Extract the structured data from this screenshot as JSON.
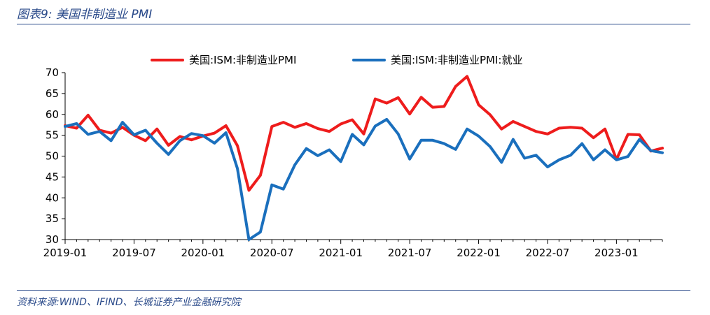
{
  "figure": {
    "title": "图表9:  美国非制造业 PMI",
    "source": "资料来源:WIND、IFIND、长城证券产业金融研究院"
  },
  "colors": {
    "series1": "#ee1c1c",
    "series2": "#1a6fbd",
    "frame": "#2a4a8a"
  },
  "chart_data": {
    "type": "line",
    "title": "",
    "xlabel": "",
    "ylabel": "",
    "ylim": [
      30,
      70
    ],
    "yticks": [
      "30",
      "35",
      "40",
      "45",
      "50",
      "55",
      "60",
      "65",
      "70"
    ],
    "xtick_labels": [
      "2019-01",
      "2019-07",
      "2020-01",
      "2020-07",
      "2021-01",
      "2021-07",
      "2022-01",
      "2022-07",
      "2023-01"
    ],
    "grid": false,
    "legend_position": "top",
    "x": [
      "2019-01",
      "2019-02",
      "2019-03",
      "2019-04",
      "2019-05",
      "2019-06",
      "2019-07",
      "2019-08",
      "2019-09",
      "2019-10",
      "2019-11",
      "2019-12",
      "2020-01",
      "2020-02",
      "2020-03",
      "2020-04",
      "2020-05",
      "2020-06",
      "2020-07",
      "2020-08",
      "2020-09",
      "2020-10",
      "2020-11",
      "2020-12",
      "2021-01",
      "2021-02",
      "2021-03",
      "2021-04",
      "2021-05",
      "2021-06",
      "2021-07",
      "2021-08",
      "2021-09",
      "2021-10",
      "2021-11",
      "2021-12",
      "2022-01",
      "2022-02",
      "2022-03",
      "2022-04",
      "2022-05",
      "2022-06",
      "2022-07",
      "2022-08",
      "2022-09",
      "2022-10",
      "2022-11",
      "2022-12",
      "2023-01",
      "2023-02",
      "2023-03",
      "2023-04",
      "2023-05"
    ],
    "series": [
      {
        "name": "美国:ISM:非制造业PMI",
        "values": [
          57.3,
          56.7,
          59.8,
          56.2,
          55.5,
          56.9,
          55.0,
          53.7,
          56.5,
          52.6,
          54.7,
          53.9,
          54.8,
          55.5,
          57.3,
          52.5,
          41.8,
          45.4,
          57.1,
          58.1,
          56.9,
          57.8,
          56.6,
          55.9,
          57.7,
          58.7,
          55.3,
          63.7,
          62.7,
          64.0,
          60.1,
          64.1,
          61.7,
          61.9,
          66.7,
          69.1,
          62.3,
          59.9,
          56.5,
          58.3,
          57.1,
          55.9,
          55.3,
          56.7,
          56.9,
          56.7,
          54.4,
          56.5,
          49.2,
          55.2,
          55.1,
          51.2,
          51.9
        ]
      },
      {
        "name": "美国:ISM:非制造业PMI:就业",
        "values": [
          57.1,
          57.8,
          55.2,
          55.9,
          53.7,
          58.1,
          55.1,
          56.2,
          53.1,
          50.4,
          53.7,
          55.4,
          54.9,
          53.1,
          55.6,
          47.0,
          30.0,
          31.8,
          43.1,
          42.1,
          47.9,
          51.8,
          50.1,
          51.5,
          48.7,
          55.2,
          52.7,
          57.2,
          58.8,
          55.3,
          49.3,
          53.8,
          53.8,
          53.0,
          51.6,
          56.5,
          54.8,
          52.3,
          48.5,
          54.0,
          49.5,
          50.2,
          47.4,
          49.1,
          50.2,
          53.0,
          49.1,
          51.5,
          49.1,
          49.9,
          54.0,
          51.3,
          50.8
        ]
      }
    ]
  }
}
